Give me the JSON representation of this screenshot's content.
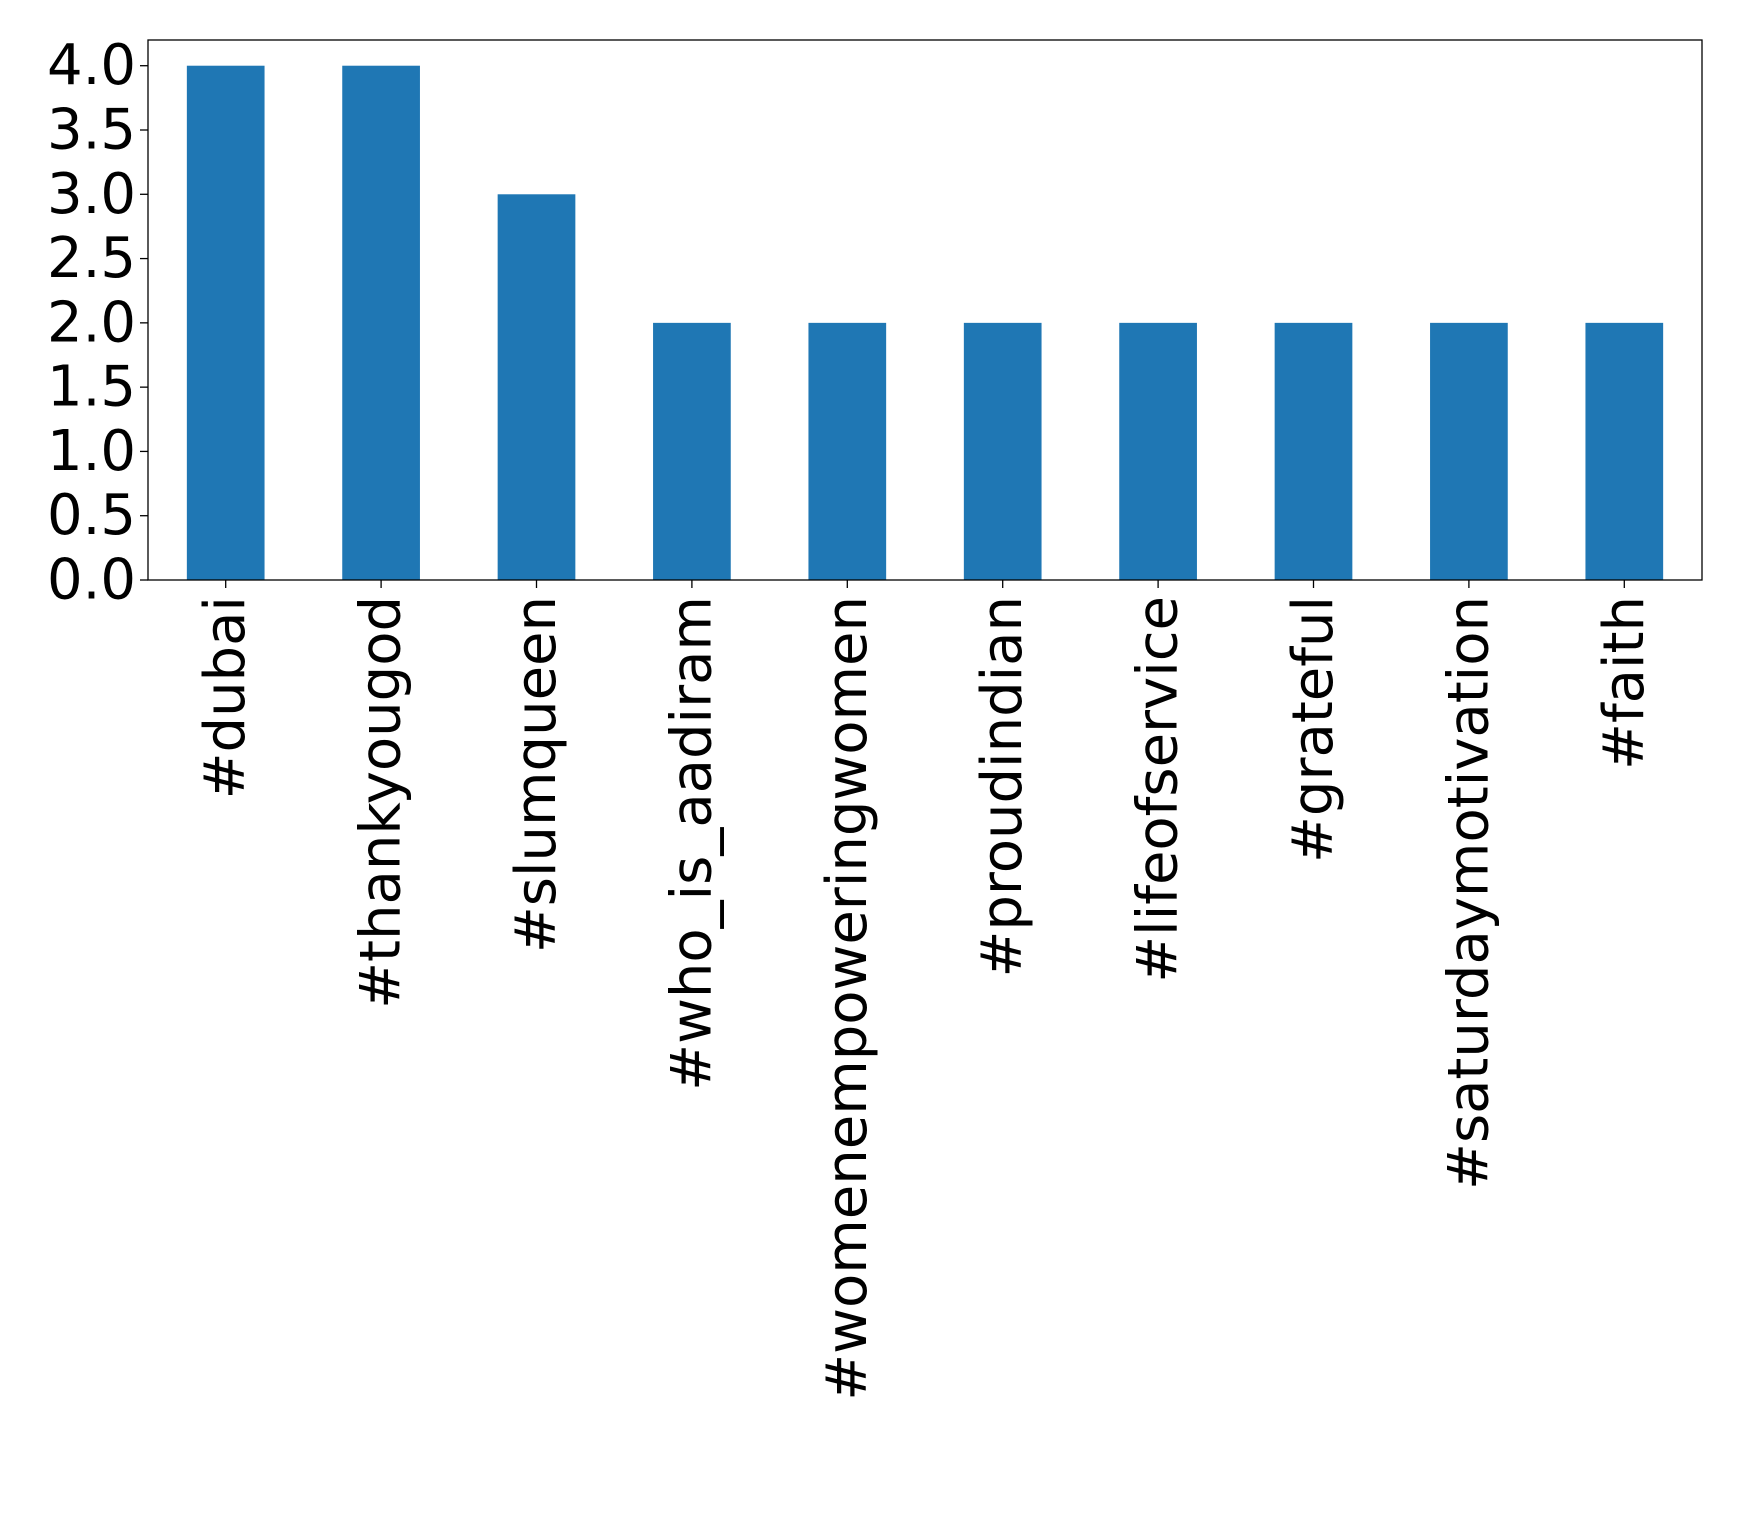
{
  "chart_data": {
    "type": "bar",
    "title": "",
    "xlabel": "",
    "ylabel": "",
    "categories": [
      "#dubai",
      "#thankyougod",
      "#slumqueen",
      "#who_is_aadiram",
      "#womenempoweringwomen",
      "#proudindian",
      "#lifeofservice",
      "#grateful",
      "#saturdaymotivation",
      "#faith"
    ],
    "values": [
      4,
      4,
      3,
      2,
      2,
      2,
      2,
      2,
      2,
      2
    ],
    "ylim": [
      0,
      4.2
    ],
    "yticks": [
      "0.0",
      "0.5",
      "1.0",
      "1.5",
      "2.0",
      "2.5",
      "3.0",
      "3.5",
      "4.0"
    ],
    "grid": false,
    "legend": "none",
    "bar_color": "#1f77b4"
  }
}
